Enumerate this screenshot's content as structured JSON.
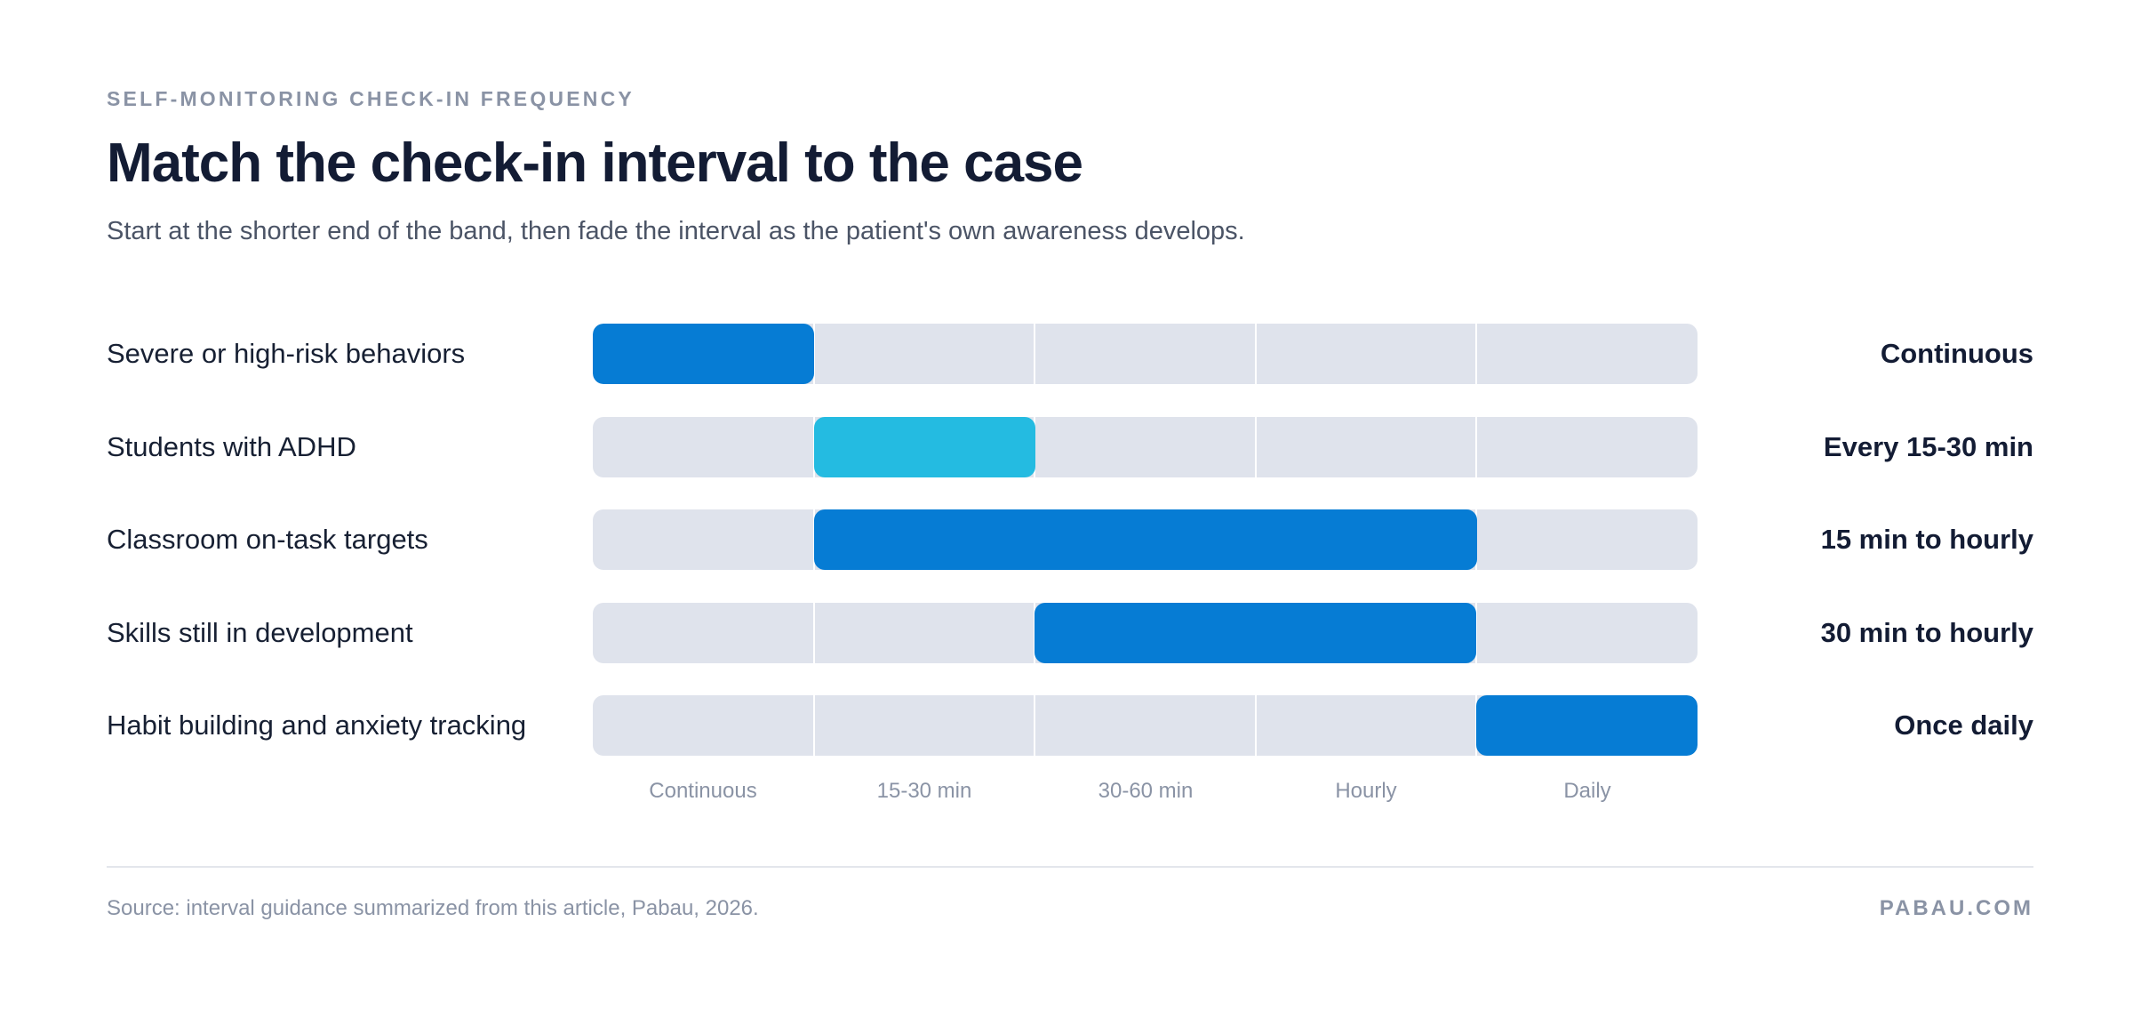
{
  "header": {
    "eyebrow": "SELF-MONITORING CHECK-IN FREQUENCY",
    "title": "Match the check-in interval to the case",
    "subtitle": "Start at the shorter end of the band, then fade the interval as the patient's own awareness develops."
  },
  "chart_data": {
    "type": "bar",
    "orientation": "horizontal-range",
    "categories": [
      "Continuous",
      "15-30 min",
      "30-60 min",
      "Hourly",
      "Daily"
    ],
    "rows": [
      {
        "label": "Severe or high-risk behaviors",
        "start": "Continuous",
        "end": "Continuous",
        "value_label": "Continuous",
        "color": "#067cd4"
      },
      {
        "label": "Students with ADHD",
        "start": "15-30 min",
        "end": "15-30 min",
        "value_label": "Every 15-30 min",
        "color": "#24bbe1"
      },
      {
        "label": "Classroom on-task targets",
        "start": "15-30 min",
        "end": "Hourly",
        "value_label": "15 min to hourly",
        "color": "#067cd4"
      },
      {
        "label": "Skills still in development",
        "start": "30-60 min",
        "end": "Hourly",
        "value_label": "30 min to hourly",
        "color": "#067cd4"
      },
      {
        "label": "Habit building and anxiety tracking",
        "start": "Daily",
        "end": "Daily",
        "value_label": "Once daily",
        "color": "#067cd4"
      }
    ],
    "track_color": "#dfe3ec",
    "grid": true
  },
  "footer": {
    "source": "Source: interval guidance summarized from this article, Pabau, 2026.",
    "brand": "PABAU.COM"
  }
}
